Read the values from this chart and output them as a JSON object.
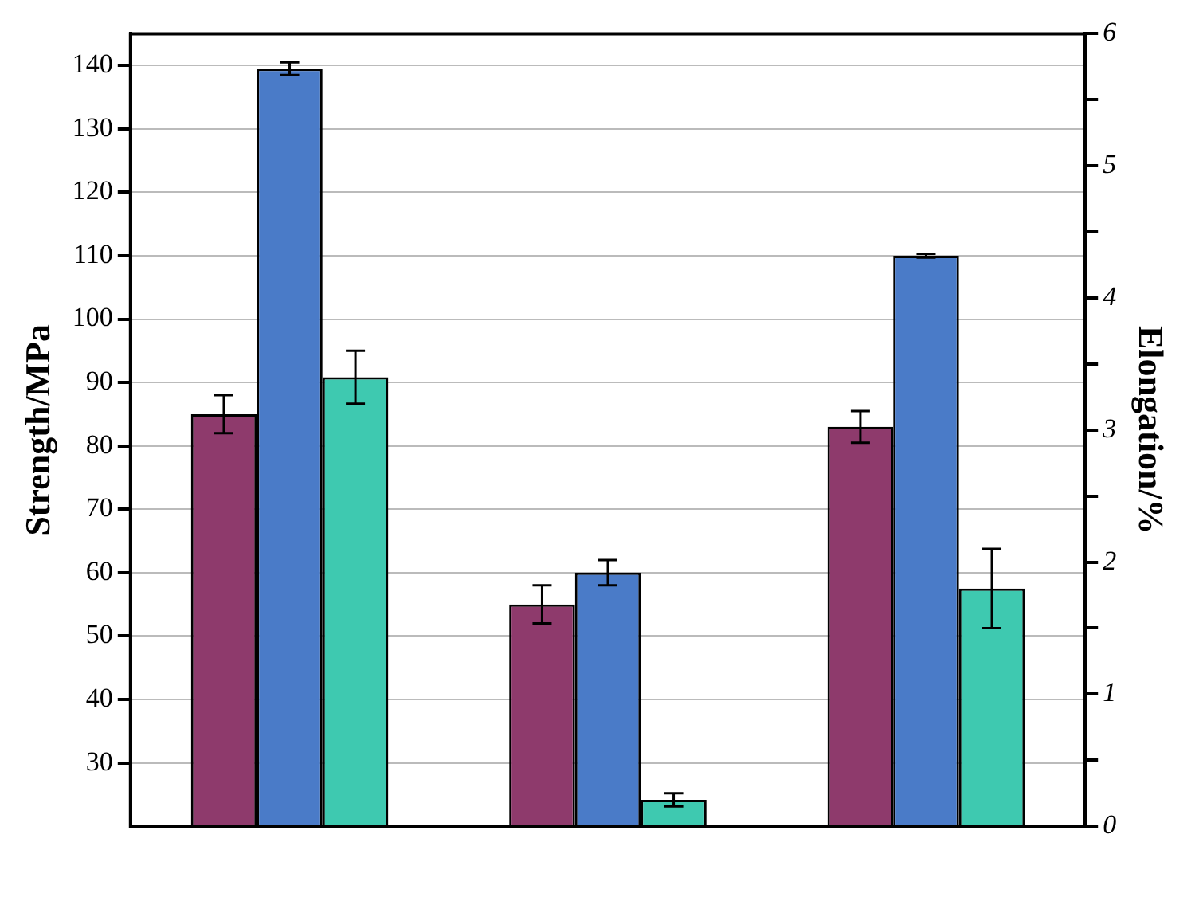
{
  "chart_data": {
    "type": "bar",
    "ylabel": "Strength/MPa",
    "y2label": "Elongation/%",
    "categories": [
      null,
      null,
      null
    ],
    "series": [
      {
        "color": "#8e3a6c",
        "values": [
          85,
          55,
          83
        ],
        "errors": [
          3,
          3,
          2.5
        ]
      },
      {
        "color": "#4a7bc8",
        "values": [
          139.5,
          60,
          110
        ],
        "errors": [
          1,
          2,
          0.3
        ]
      },
      {
        "color": "#3ec9b0",
        "axis": "y2",
        "values": [
          3.4,
          0.2,
          1.8
        ],
        "errors": [
          0.2,
          0.05,
          0.3
        ]
      }
    ],
    "ylim": [
      20,
      145
    ],
    "yticks": [
      30,
      40,
      50,
      60,
      70,
      80,
      90,
      100,
      110,
      120,
      130,
      140
    ],
    "y2lim": [
      0,
      6
    ],
    "y2ticks": [
      0,
      {
        "value": 0.5,
        "label": null
      },
      1,
      {
        "value": 1.5,
        "label": null
      },
      2,
      {
        "value": 2.5,
        "label": null
      },
      3,
      {
        "value": 3.5,
        "label": null
      },
      4,
      {
        "value": 4.5,
        "label": null
      },
      5,
      {
        "value": 5.5,
        "label": null
      },
      6
    ],
    "grid": "y",
    "legend": false
  }
}
